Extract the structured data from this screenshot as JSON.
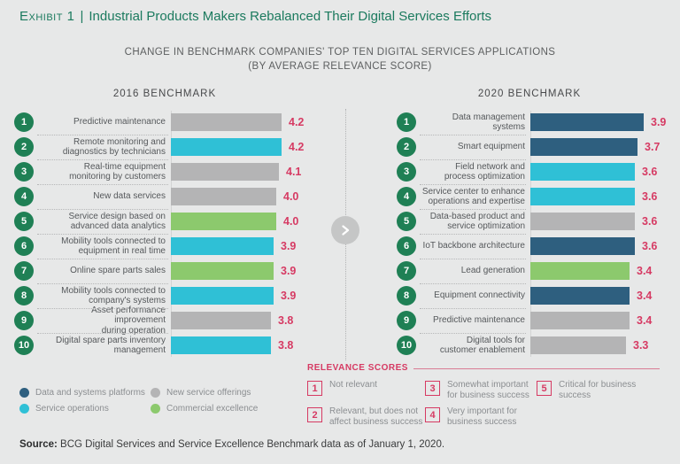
{
  "header": {
    "exhibit_label": "Exhibit 1",
    "divider": "|",
    "title": "Industrial Products Makers Rebalanced Their Digital Services Efforts",
    "subtitle_line1": "CHANGE IN BENCHMARK COMPANIES' TOP TEN DIGITAL SERVICES APPLICATIONS",
    "subtitle_line2": "(BY AVERAGE RELEVANCE SCORE)"
  },
  "chart_data": [
    {
      "type": "bar",
      "orientation": "horizontal",
      "title": "2016 BENCHMARK",
      "value_axis": "average relevance score",
      "max_value": 4.2,
      "items": [
        {
          "rank": "1",
          "label": "Predictive maintenance",
          "value": 4.2,
          "category": "New service offerings"
        },
        {
          "rank": "2",
          "label": "Remote monitoring and\ndiagnostics by technicians",
          "value": 4.2,
          "category": "Service operations"
        },
        {
          "rank": "3",
          "label": "Real-time equipment\nmonitoring by customers",
          "value": 4.1,
          "category": "New service offerings"
        },
        {
          "rank": "4",
          "label": "New data services",
          "value": 4.0,
          "category": "New service offerings"
        },
        {
          "rank": "5",
          "label": "Service design based on\nadvanced data analytics",
          "value": 4.0,
          "category": "Commercial excellence"
        },
        {
          "rank": "6",
          "label": "Mobility tools connected to\nequipment in real time",
          "value": 3.9,
          "category": "Service operations"
        },
        {
          "rank": "7",
          "label": "Online spare parts sales",
          "value": 3.9,
          "category": "Commercial excellence"
        },
        {
          "rank": "8",
          "label": "Mobility tools connected to\ncompany's systems",
          "value": 3.9,
          "category": "Service operations"
        },
        {
          "rank": "9",
          "label": "Asset performance improvement\nduring operation",
          "value": 3.8,
          "category": "New service offerings"
        },
        {
          "rank": "10",
          "label": "Digital spare parts inventory\nmanagement",
          "value": 3.8,
          "category": "Service operations"
        }
      ]
    },
    {
      "type": "bar",
      "orientation": "horizontal",
      "title": "2020 BENCHMARK",
      "value_axis": "average relevance score",
      "max_value": 3.9,
      "items": [
        {
          "rank": "1",
          "label": "Data management systems",
          "value": 3.9,
          "category": "Data and systems platforms"
        },
        {
          "rank": "2",
          "label": "Smart equipment",
          "value": 3.7,
          "category": "Data and systems platforms"
        },
        {
          "rank": "3",
          "label": "Field network and\nprocess optimization",
          "value": 3.6,
          "category": "Service operations"
        },
        {
          "rank": "4",
          "label": "Service center to enhance\noperations and expertise",
          "value": 3.6,
          "category": "Service operations"
        },
        {
          "rank": "5",
          "label": "Data-based product and\nservice optimization",
          "value": 3.6,
          "category": "New service offerings"
        },
        {
          "rank": "6",
          "label": "IoT backbone architecture",
          "value": 3.6,
          "category": "Data and systems platforms"
        },
        {
          "rank": "7",
          "label": "Lead generation",
          "value": 3.4,
          "category": "Commercial excellence"
        },
        {
          "rank": "8",
          "label": "Equipment connectivity",
          "value": 3.4,
          "category": "Data and systems platforms"
        },
        {
          "rank": "9",
          "label": "Predictive maintenance",
          "value": 3.4,
          "category": "New service offerings"
        },
        {
          "rank": "10",
          "label": "Digital tools for\ncustomer enablement",
          "value": 3.3,
          "category": "New service offerings"
        }
      ]
    }
  ],
  "category_legend": {
    "items": [
      {
        "label": "Data and systems platforms",
        "color": "#2e5f7f"
      },
      {
        "label": "Service operations",
        "color": "#2fc0d6"
      },
      {
        "label": "New service offerings",
        "color": "#b4b4b5"
      },
      {
        "label": "Commercial excellence",
        "color": "#8cc96d"
      }
    ]
  },
  "relevance_scores": {
    "heading": "RELEVANCE SCORES",
    "items": [
      {
        "score": "1",
        "label": "Not relevant"
      },
      {
        "score": "2",
        "label": "Relevant, but does not affect business success"
      },
      {
        "score": "3",
        "label": "Somewhat important for business success"
      },
      {
        "score": "4",
        "label": "Very important for business success"
      },
      {
        "score": "5",
        "label": "Critical for business success"
      }
    ]
  },
  "source": {
    "label": "Source:",
    "text": " BCG Digital Services and Service Excellence Benchmark data as of January 1, 2020."
  },
  "colors": {
    "background": "#e7e8e8",
    "title_teal": "#1b7a5e",
    "rank_circle_green": "#1f8055",
    "value_red": "#d63a63"
  }
}
